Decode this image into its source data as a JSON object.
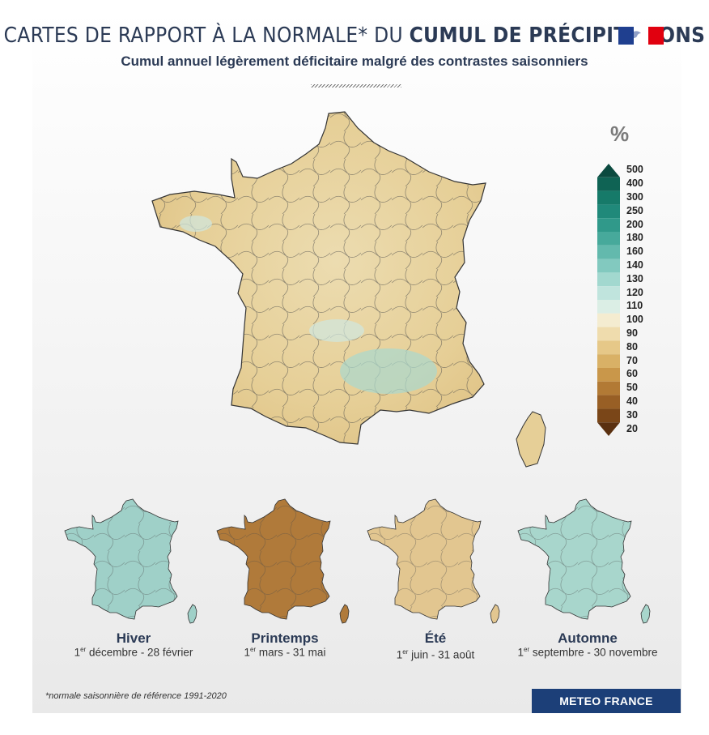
{
  "header": {
    "title_light": "CARTES DE RAPPORT À LA NORMALE* DU ",
    "title_bold": "CUMUL DE PRÉCIPITATIONS",
    "subtitle": "Cumul annuel légèrement déficitaire malgré des contrastes saisonniers",
    "flag_colors": [
      "#1f3f8f",
      "#ffffff",
      "#e1000f"
    ]
  },
  "legend": {
    "unit": "%",
    "labels": [
      "500",
      "400",
      "300",
      "250",
      "200",
      "180",
      "160",
      "140",
      "130",
      "120",
      "110",
      "100",
      "90",
      "80",
      "70",
      "60",
      "50",
      "40",
      "30",
      "20"
    ],
    "colors": [
      "#0b4a3f",
      "#0f6354",
      "#167a69",
      "#20897a",
      "#30998a",
      "#47a99b",
      "#63b9ad",
      "#82c9bf",
      "#a2d8cf",
      "#c0e4dd",
      "#dbeee5",
      "#f4ecd0",
      "#efdcad",
      "#e6c888",
      "#d9b166",
      "#c9974a",
      "#b27a35",
      "#985f25",
      "#7a4618",
      "#5a3010"
    ]
  },
  "seasons": [
    {
      "name": "Hiver",
      "dates_prefix": "1",
      "dates_sup": "er",
      "dates_rest": " décembre - 28 février",
      "tint": "#9fd0c8"
    },
    {
      "name": "Printemps",
      "dates_prefix": "1",
      "dates_sup": "er",
      "dates_rest": " mars - 31 mai",
      "tint": "#b07a3a"
    },
    {
      "name": "Été",
      "dates_prefix": "1",
      "dates_sup": "er",
      "dates_rest": " juin - 31 août",
      "tint": "#e2c690"
    },
    {
      "name": "Automne",
      "dates_prefix": "1",
      "dates_sup": "er",
      "dates_rest": " septembre - 30 novembre",
      "tint": "#a8d6cc"
    }
  ],
  "footer": {
    "footnote": "*normale saisonnière de référence 1991-2020",
    "brand": "METEO FRANCE"
  }
}
